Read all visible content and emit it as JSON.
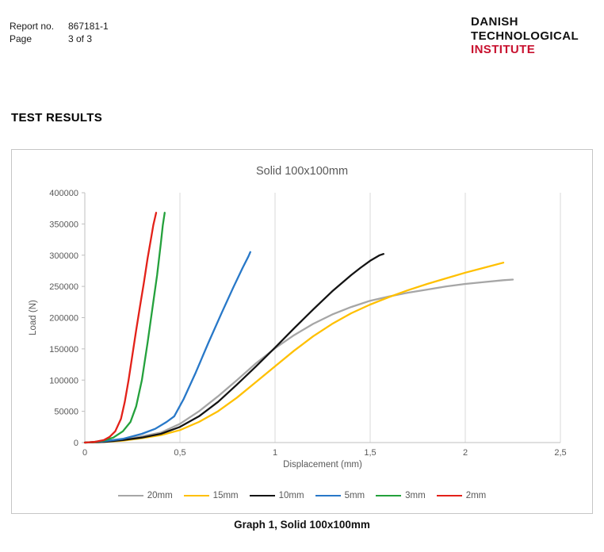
{
  "header": {
    "report_label": "Report no.",
    "report_value": "867181-1",
    "page_label": "Page",
    "page_value": "3 of 3",
    "logo": {
      "line1": "DANISH",
      "line2": "TECHNOLOGICAL",
      "line3": "INSTITUTE",
      "line3_color": "#C8102E"
    }
  },
  "section_title": "TEST RESULTS",
  "caption": "Graph 1, Solid 100x100mm",
  "chart_data": {
    "type": "line",
    "title": "Solid 100x100mm",
    "xlabel": "Displacement (mm)",
    "ylabel": "Load (N)",
    "xlim": [
      0,
      2.5
    ],
    "ylim": [
      0,
      400000
    ],
    "xticks": [
      0,
      0.5,
      1,
      1.5,
      2,
      2.5
    ],
    "xtick_labels": [
      "0",
      "0,5",
      "1",
      "1,5",
      "2",
      "2,5"
    ],
    "yticks": [
      0,
      50000,
      100000,
      150000,
      200000,
      250000,
      300000,
      350000,
      400000
    ],
    "ytick_labels": [
      "0",
      "50000",
      "100000",
      "150000",
      "200000",
      "250000",
      "300000",
      "350000",
      "400000"
    ],
    "grid": "vertical-major",
    "grid_color": "#d9d9d9",
    "axis_color": "#bfbfbf",
    "legend_position": "bottom",
    "series": [
      {
        "name": "20mm",
        "color": "#a6a6a6",
        "points": [
          [
            0,
            0
          ],
          [
            0.1,
            1000
          ],
          [
            0.2,
            5000
          ],
          [
            0.3,
            10000
          ],
          [
            0.4,
            16000
          ],
          [
            0.5,
            30000
          ],
          [
            0.6,
            50000
          ],
          [
            0.7,
            74000
          ],
          [
            0.8,
            100000
          ],
          [
            0.9,
            127000
          ],
          [
            1.0,
            151000
          ],
          [
            1.1,
            172000
          ],
          [
            1.2,
            190000
          ],
          [
            1.3,
            205000
          ],
          [
            1.4,
            217000
          ],
          [
            1.5,
            227000
          ],
          [
            1.6,
            234000
          ],
          [
            1.7,
            240000
          ],
          [
            1.8,
            245000
          ],
          [
            1.9,
            250000
          ],
          [
            2.0,
            254000
          ],
          [
            2.1,
            257000
          ],
          [
            2.2,
            260000
          ],
          [
            2.25,
            261000
          ]
        ]
      },
      {
        "name": "15mm",
        "color": "#ffc000",
        "points": [
          [
            0,
            0
          ],
          [
            0.1,
            1000
          ],
          [
            0.2,
            3000
          ],
          [
            0.3,
            7000
          ],
          [
            0.4,
            12000
          ],
          [
            0.5,
            20000
          ],
          [
            0.6,
            33000
          ],
          [
            0.7,
            50000
          ],
          [
            0.8,
            72000
          ],
          [
            0.9,
            97000
          ],
          [
            1.0,
            122000
          ],
          [
            1.1,
            147000
          ],
          [
            1.2,
            170000
          ],
          [
            1.3,
            190000
          ],
          [
            1.4,
            207000
          ],
          [
            1.5,
            221000
          ],
          [
            1.6,
            233000
          ],
          [
            1.7,
            244000
          ],
          [
            1.8,
            254000
          ],
          [
            1.9,
            263000
          ],
          [
            2.0,
            272000
          ],
          [
            2.1,
            280000
          ],
          [
            2.2,
            288000
          ]
        ]
      },
      {
        "name": "10mm",
        "color": "#141414",
        "points": [
          [
            0,
            0
          ],
          [
            0.1,
            1000
          ],
          [
            0.2,
            4000
          ],
          [
            0.3,
            8000
          ],
          [
            0.4,
            14000
          ],
          [
            0.5,
            25000
          ],
          [
            0.6,
            42000
          ],
          [
            0.7,
            65000
          ],
          [
            0.8,
            93000
          ],
          [
            0.9,
            122000
          ],
          [
            1.0,
            152000
          ],
          [
            1.1,
            183000
          ],
          [
            1.2,
            213000
          ],
          [
            1.3,
            242000
          ],
          [
            1.4,
            268000
          ],
          [
            1.45,
            280000
          ],
          [
            1.5,
            291000
          ],
          [
            1.55,
            300000
          ],
          [
            1.57,
            302000
          ]
        ]
      },
      {
        "name": "5mm",
        "color": "#2878c8",
        "points": [
          [
            0,
            0
          ],
          [
            0.1,
            2000
          ],
          [
            0.2,
            6000
          ],
          [
            0.3,
            14000
          ],
          [
            0.37,
            22000
          ],
          [
            0.43,
            33000
          ],
          [
            0.47,
            42000
          ],
          [
            0.52,
            70000
          ],
          [
            0.58,
            110000
          ],
          [
            0.65,
            160000
          ],
          [
            0.72,
            208000
          ],
          [
            0.78,
            248000
          ],
          [
            0.83,
            280000
          ],
          [
            0.86,
            298000
          ],
          [
            0.87,
            305000
          ]
        ]
      },
      {
        "name": "3mm",
        "color": "#24a13c",
        "points": [
          [
            0,
            0
          ],
          [
            0.05,
            1000
          ],
          [
            0.1,
            3000
          ],
          [
            0.15,
            8000
          ],
          [
            0.2,
            18000
          ],
          [
            0.24,
            33000
          ],
          [
            0.27,
            58000
          ],
          [
            0.3,
            100000
          ],
          [
            0.33,
            160000
          ],
          [
            0.36,
            225000
          ],
          [
            0.38,
            268000
          ],
          [
            0.4,
            320000
          ],
          [
            0.41,
            348000
          ],
          [
            0.42,
            368000
          ]
        ]
      },
      {
        "name": "2mm",
        "color": "#e32119",
        "points": [
          [
            0,
            0
          ],
          [
            0.05,
            1000
          ],
          [
            0.1,
            4000
          ],
          [
            0.13,
            9000
          ],
          [
            0.16,
            18000
          ],
          [
            0.19,
            38000
          ],
          [
            0.21,
            65000
          ],
          [
            0.23,
            100000
          ],
          [
            0.25,
            140000
          ],
          [
            0.27,
            180000
          ],
          [
            0.29,
            218000
          ],
          [
            0.31,
            255000
          ],
          [
            0.33,
            295000
          ],
          [
            0.35,
            330000
          ],
          [
            0.36,
            348000
          ],
          [
            0.375,
            368000
          ]
        ]
      }
    ]
  }
}
